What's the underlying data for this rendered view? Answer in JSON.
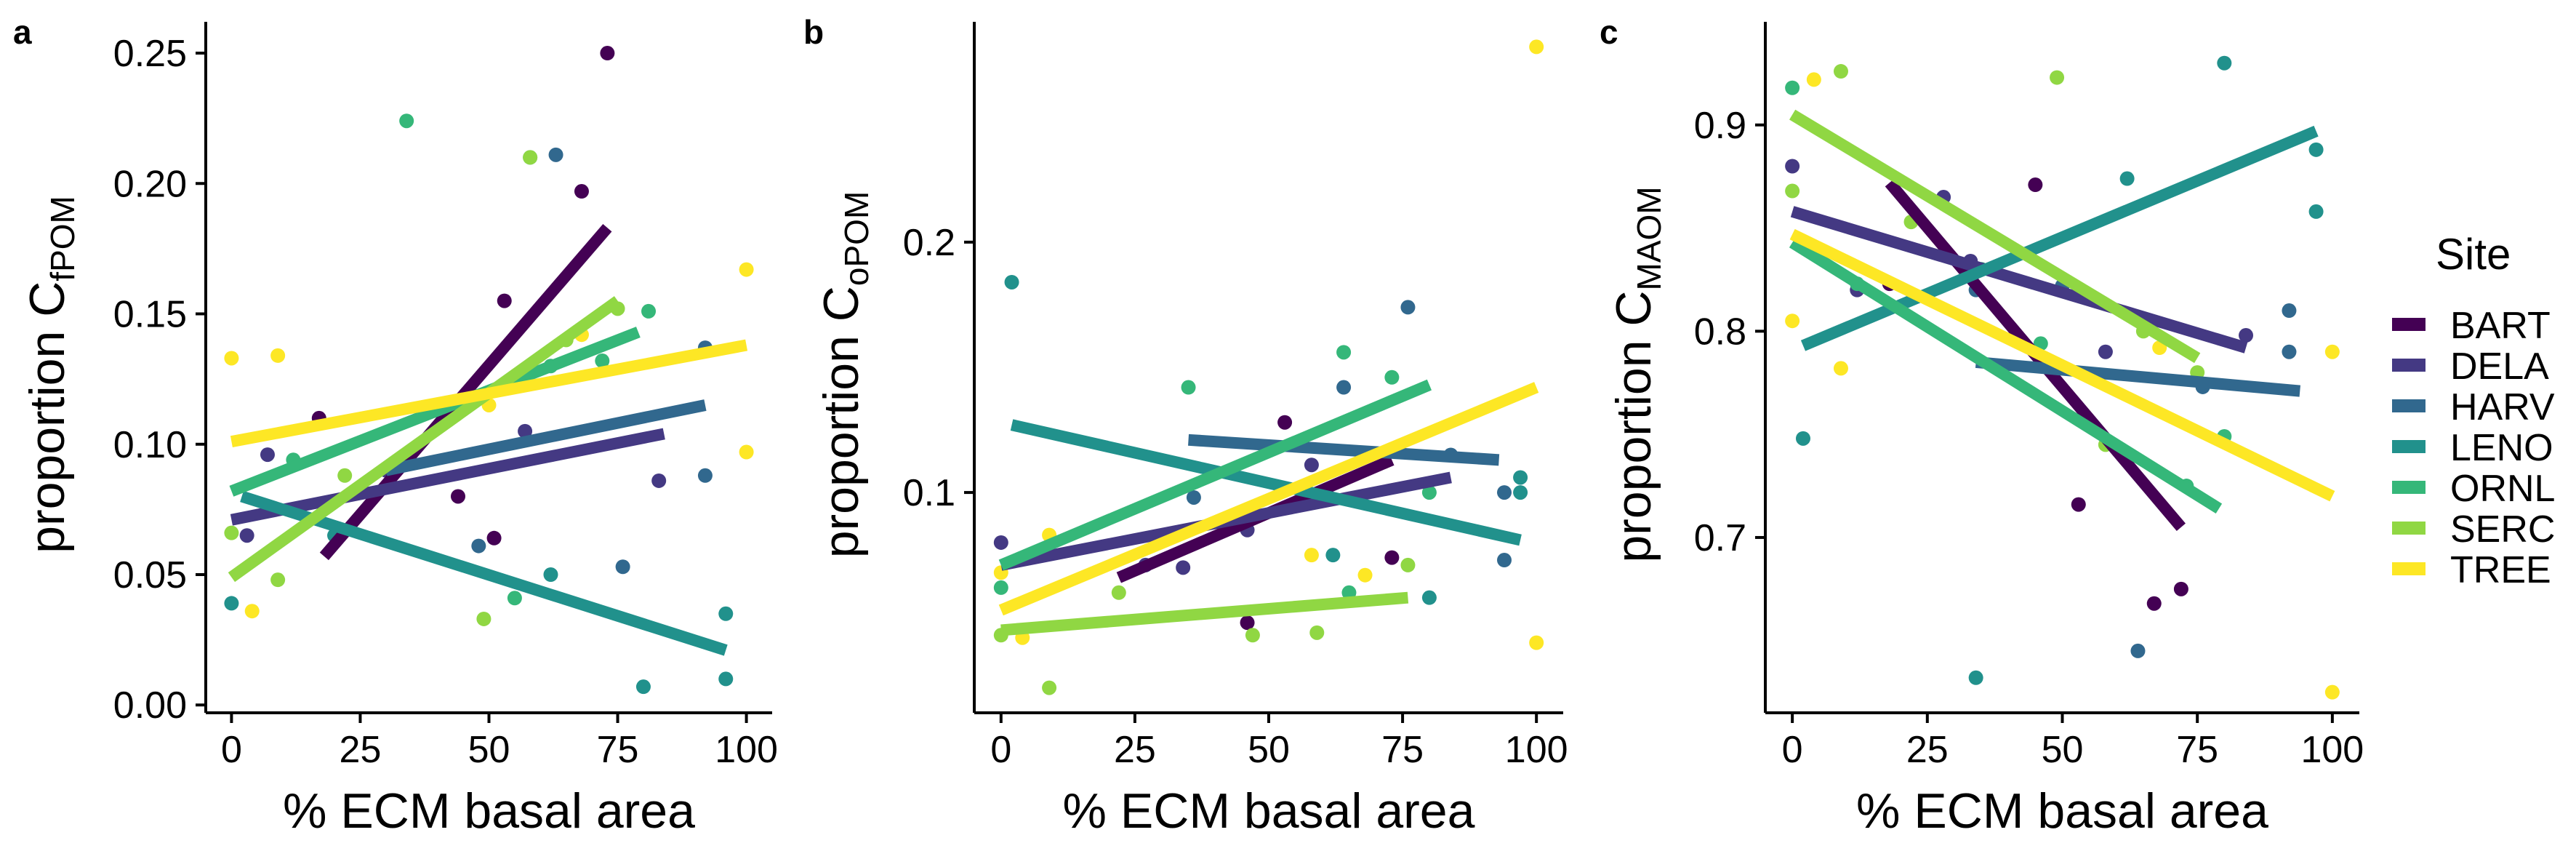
{
  "legend": {
    "title": "Site",
    "entries": [
      {
        "name": "BART",
        "color": "#440154"
      },
      {
        "name": "DELA",
        "color": "#443983"
      },
      {
        "name": "HARV",
        "color": "#31688E"
      },
      {
        "name": "LENO",
        "color": "#21918C"
      },
      {
        "name": "ORNL",
        "color": "#35B779"
      },
      {
        "name": "SERC",
        "color": "#90D743"
      },
      {
        "name": "TREE",
        "color": "#FDE725"
      }
    ],
    "placement": "right"
  },
  "chart_data": [
    {
      "tag": "a",
      "type": "scatter",
      "xlabel": "% ECM basal area",
      "ylabel_main": "proportion C",
      "ylabel_sub": "fPOM",
      "xlim": [
        -5,
        105
      ],
      "ylim": [
        -0.003,
        0.262
      ],
      "x_ticks": [
        0,
        25,
        50,
        75,
        100
      ],
      "y_ticks": [
        0.0,
        0.05,
        0.1,
        0.15,
        0.2,
        0.25
      ],
      "y_tick_labels": [
        "0.00",
        "0.05",
        "0.10",
        "0.15",
        "0.20",
        "0.25"
      ],
      "grid": false,
      "series": [
        {
          "name": "BART",
          "points": [
            [
              17,
              0.11
            ],
            [
              44,
              0.08
            ],
            [
              51,
              0.064
            ],
            [
              53,
              0.155
            ],
            [
              68,
              0.197
            ],
            [
              73,
              0.25
            ]
          ],
          "fit": [
            [
              18,
              0.057
            ],
            [
              73,
              0.183
            ]
          ]
        },
        {
          "name": "DELA",
          "points": [
            [
              3,
              0.065
            ],
            [
              7,
              0.096
            ],
            [
              30,
              0.09
            ],
            [
              57,
              0.105
            ],
            [
              83,
              0.086
            ]
          ],
          "fit": [
            [
              0,
              0.071
            ],
            [
              84,
              0.104
            ]
          ]
        },
        {
          "name": "HARV",
          "points": [
            [
              32,
              0.09
            ],
            [
              48,
              0.061
            ],
            [
              63,
              0.211
            ],
            [
              76,
              0.053
            ],
            [
              92,
              0.088
            ],
            [
              92,
              0.137
            ]
          ],
          "fit": [
            [
              30,
              0.09
            ],
            [
              92,
              0.115
            ]
          ]
        },
        {
          "name": "LENO",
          "points": [
            [
              0,
              0.039
            ],
            [
              20,
              0.065
            ],
            [
              62,
              0.05
            ],
            [
              80,
              0.007
            ],
            [
              96,
              0.035
            ],
            [
              96,
              0.01
            ]
          ],
          "fit": [
            [
              2,
              0.08
            ],
            [
              96,
              0.021
            ]
          ]
        },
        {
          "name": "ORNL",
          "points": [
            [
              12,
              0.094
            ],
            [
              34,
              0.224
            ],
            [
              55,
              0.041
            ],
            [
              58,
              0.21
            ],
            [
              62,
              0.13
            ],
            [
              72,
              0.132
            ],
            [
              81,
              0.151
            ]
          ],
          "fit": [
            [
              0,
              0.082
            ],
            [
              79,
              0.143
            ]
          ]
        },
        {
          "name": "SERC",
          "points": [
            [
              0,
              0.066
            ],
            [
              9,
              0.048
            ],
            [
              22,
              0.088
            ],
            [
              49,
              0.033
            ],
            [
              58,
              0.21
            ],
            [
              65,
              0.14
            ],
            [
              75,
              0.152
            ]
          ],
          "fit": [
            [
              0,
              0.049
            ],
            [
              75,
              0.155
            ]
          ]
        },
        {
          "name": "TREE",
          "points": [
            [
              0,
              0.133
            ],
            [
              4,
              0.036
            ],
            [
              9,
              0.134
            ],
            [
              50,
              0.115
            ],
            [
              68,
              0.142
            ],
            [
              100,
              0.167
            ],
            [
              100,
              0.097
            ]
          ],
          "fit": [
            [
              0,
              0.101
            ],
            [
              100,
              0.138
            ]
          ]
        }
      ]
    },
    {
      "tag": "b",
      "type": "scatter",
      "xlabel": "% ECM basal area",
      "ylabel_main": "proportion C",
      "ylabel_sub": "oPOM",
      "xlim": [
        -5,
        105
      ],
      "ylim": [
        0.012,
        0.288
      ],
      "x_ticks": [
        0,
        25,
        50,
        75,
        100
      ],
      "y_ticks": [
        0.1,
        0.2
      ],
      "y_tick_labels": [
        "0.1",
        "0.2"
      ],
      "grid": false,
      "series": [
        {
          "name": "BART",
          "points": [
            [
              46,
              0.048
            ],
            [
              53,
              0.128
            ],
            [
              73,
              0.074
            ]
          ],
          "fit": [
            [
              22,
              0.066
            ],
            [
              73,
              0.113
            ]
          ]
        },
        {
          "name": "DELA",
          "points": [
            [
              0,
              0.08
            ],
            [
              27,
              0.071
            ],
            [
              34,
              0.07
            ],
            [
              46,
              0.085
            ],
            [
              58,
              0.111
            ]
          ],
          "fit": [
            [
              0,
              0.071
            ],
            [
              84,
              0.106
            ]
          ]
        },
        {
          "name": "HARV",
          "points": [
            [
              36,
              0.098
            ],
            [
              64,
              0.142
            ],
            [
              76,
              0.174
            ],
            [
              84,
              0.115
            ],
            [
              94,
              0.073
            ],
            [
              94,
              0.1
            ]
          ],
          "fit": [
            [
              35,
              0.121
            ],
            [
              93,
              0.113
            ]
          ]
        },
        {
          "name": "LENO",
          "points": [
            [
              2,
              0.184
            ],
            [
              62,
              0.075
            ],
            [
              80,
              0.058
            ],
            [
              97,
              0.106
            ],
            [
              97,
              0.1
            ]
          ],
          "fit": [
            [
              2,
              0.127
            ],
            [
              97,
              0.081
            ]
          ]
        },
        {
          "name": "ORNL",
          "points": [
            [
              0,
              0.062
            ],
            [
              35,
              0.142
            ],
            [
              64,
              0.156
            ],
            [
              65,
              0.06
            ],
            [
              73,
              0.146
            ],
            [
              80,
              0.1
            ]
          ],
          "fit": [
            [
              0,
              0.071
            ],
            [
              80,
              0.143
            ]
          ]
        },
        {
          "name": "SERC",
          "points": [
            [
              0,
              0.043
            ],
            [
              9,
              0.022
            ],
            [
              22,
              0.06
            ],
            [
              47,
              0.043
            ],
            [
              59,
              0.044
            ],
            [
              76,
              0.071
            ]
          ],
          "fit": [
            [
              0,
              0.045
            ],
            [
              76,
              0.058
            ]
          ]
        },
        {
          "name": "TREE",
          "points": [
            [
              0,
              0.068
            ],
            [
              4,
              0.042
            ],
            [
              9,
              0.083
            ],
            [
              58,
              0.075
            ],
            [
              68,
              0.067
            ],
            [
              100,
              0.278
            ],
            [
              100,
              0.04
            ]
          ],
          "fit": [
            [
              0,
              0.053
            ],
            [
              100,
              0.142
            ]
          ]
        }
      ]
    },
    {
      "tag": "c",
      "type": "scatter",
      "xlabel": "% ECM basal area",
      "ylabel_main": "proportion C",
      "ylabel_sub": "MAOM",
      "xlim": [
        -5,
        105
      ],
      "ylim": [
        0.615,
        0.95
      ],
      "x_ticks": [
        0,
        25,
        50,
        75,
        100
      ],
      "y_ticks": [
        0.7,
        0.8,
        0.9
      ],
      "y_tick_labels": [
        "0.7",
        "0.8",
        "0.9"
      ],
      "grid": false,
      "series": [
        {
          "name": "BART",
          "points": [
            [
              18,
              0.823
            ],
            [
              45,
              0.871
            ],
            [
              53,
              0.716
            ],
            [
              67,
              0.668
            ],
            [
              72,
              0.675
            ]
          ],
          "fit": [
            [
              18,
              0.872
            ],
            [
              72,
              0.705
            ]
          ]
        },
        {
          "name": "DELA",
          "points": [
            [
              0,
              0.88
            ],
            [
              12,
              0.82
            ],
            [
              28,
              0.865
            ],
            [
              33,
              0.834
            ],
            [
              58,
              0.79
            ],
            [
              84,
              0.798
            ]
          ],
          "fit": [
            [
              0,
              0.858
            ],
            [
              84,
              0.792
            ]
          ]
        },
        {
          "name": "HARV",
          "points": [
            [
              34,
              0.82
            ],
            [
              50,
              0.822
            ],
            [
              64,
              0.645
            ],
            [
              76,
              0.773
            ],
            [
              92,
              0.81
            ],
            [
              92,
              0.79
            ]
          ],
          "fit": [
            [
              34,
              0.785
            ],
            [
              94,
              0.771
            ]
          ]
        },
        {
          "name": "LENO",
          "points": [
            [
              2,
              0.748
            ],
            [
              34,
              0.632
            ],
            [
              62,
              0.874
            ],
            [
              80,
              0.93
            ],
            [
              97,
              0.888
            ],
            [
              97,
              0.858
            ]
          ],
          "fit": [
            [
              2,
              0.793
            ],
            [
              97,
              0.897
            ]
          ]
        },
        {
          "name": "ORNL",
          "points": [
            [
              0,
              0.918
            ],
            [
              12,
              0.823
            ],
            [
              35,
              0.83
            ],
            [
              46,
              0.794
            ],
            [
              73,
              0.725
            ],
            [
              80,
              0.749
            ]
          ],
          "fit": [
            [
              0,
              0.843
            ],
            [
              79,
              0.714
            ]
          ]
        },
        {
          "name": "SERC",
          "points": [
            [
              0,
              0.868
            ],
            [
              9,
              0.926
            ],
            [
              22,
              0.853
            ],
            [
              49,
              0.923
            ],
            [
              58,
              0.745
            ],
            [
              65,
              0.8
            ],
            [
              75,
              0.78
            ]
          ],
          "fit": [
            [
              0,
              0.905
            ],
            [
              75,
              0.787
            ]
          ]
        },
        {
          "name": "TREE",
          "points": [
            [
              0,
              0.805
            ],
            [
              4,
              0.922
            ],
            [
              9,
              0.782
            ],
            [
              68,
              0.792
            ],
            [
              100,
              0.79
            ],
            [
              100,
              0.625
            ]
          ],
          "fit": [
            [
              0,
              0.847
            ],
            [
              100,
              0.72
            ]
          ]
        }
      ]
    }
  ]
}
